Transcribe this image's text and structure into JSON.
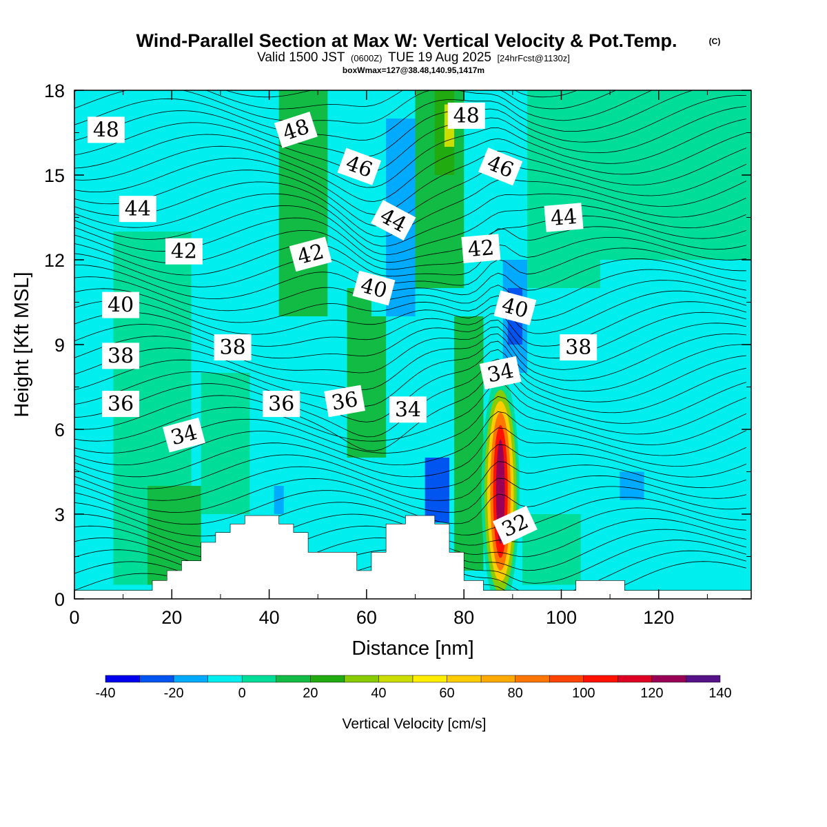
{
  "chart_data": {
    "type": "heatmap",
    "title": "Wind-Parallel Section at Max W: Vertical Velocity & Pot.Temp.",
    "copyright": "(C)",
    "subtitle": {
      "valid_prefix": "Valid 1500 JST",
      "utc": "(0600Z)",
      "date": "TUE 19 Aug 2025",
      "forecast": "[24hrFcst@1130z]"
    },
    "box_info": "boxWmax=127@38.48,140.95,1417m",
    "xlabel": "Distance [nm]",
    "ylabel": "Height [Kft MSL]",
    "xlim": [
      0,
      139
    ],
    "ylim": [
      0,
      18
    ],
    "xticks": [
      0,
      20,
      40,
      60,
      80,
      100,
      120
    ],
    "yticks": [
      0,
      3,
      6,
      9,
      12,
      15,
      18
    ],
    "colorbar": {
      "label": "Vertical Velocity [cm/s]",
      "range": [
        -40,
        140
      ],
      "step": 10,
      "tick_labels": [
        "-40",
        "-20",
        "0",
        "20",
        "40",
        "60",
        "80",
        "100",
        "120",
        "140"
      ],
      "colors": [
        "#0000ee",
        "#0055f0",
        "#00aaff",
        "#00eeee",
        "#00dd99",
        "#11bb44",
        "#22aa11",
        "#88cc00",
        "#ccdd00",
        "#ffee00",
        "#ffcc00",
        "#ffaa00",
        "#ff7700",
        "#ff4400",
        "#ff1100",
        "#dd0022",
        "#990055",
        "#551188"
      ]
    },
    "theta_labels": [
      {
        "text": "48",
        "x": 6.5,
        "y": 16.6,
        "rot": 0
      },
      {
        "text": "48",
        "x": 45.5,
        "y": 16.6,
        "rot": -18
      },
      {
        "text": "48",
        "x": 80.5,
        "y": 17.1,
        "rot": 0
      },
      {
        "text": "46",
        "x": 58.5,
        "y": 15.3,
        "rot": 20
      },
      {
        "text": "46",
        "x": 87.5,
        "y": 15.3,
        "rot": 22
      },
      {
        "text": "44",
        "x": 13.0,
        "y": 13.8,
        "rot": 0
      },
      {
        "text": "44",
        "x": 65.5,
        "y": 13.4,
        "rot": 28
      },
      {
        "text": "44",
        "x": 100.5,
        "y": 13.5,
        "rot": -5
      },
      {
        "text": "42",
        "x": 22.5,
        "y": 12.3,
        "rot": 0
      },
      {
        "text": "42",
        "x": 48.5,
        "y": 12.2,
        "rot": -15
      },
      {
        "text": "42",
        "x": 83.5,
        "y": 12.4,
        "rot": -5
      },
      {
        "text": "40",
        "x": 9.5,
        "y": 10.4,
        "rot": 0
      },
      {
        "text": "40",
        "x": 61.5,
        "y": 11.0,
        "rot": 15
      },
      {
        "text": "40",
        "x": 90.5,
        "y": 10.3,
        "rot": 15
      },
      {
        "text": "38",
        "x": 9.5,
        "y": 8.6,
        "rot": 0
      },
      {
        "text": "38",
        "x": 32.5,
        "y": 8.9,
        "rot": 0
      },
      {
        "text": "38",
        "x": 103.5,
        "y": 8.9,
        "rot": 0
      },
      {
        "text": "36",
        "x": 9.5,
        "y": 6.9,
        "rot": 0
      },
      {
        "text": "36",
        "x": 42.5,
        "y": 6.9,
        "rot": 0
      },
      {
        "text": "36",
        "x": 55.5,
        "y": 7.0,
        "rot": -10
      },
      {
        "text": "34",
        "x": 68.5,
        "y": 6.7,
        "rot": 0
      },
      {
        "text": "34",
        "x": 22.5,
        "y": 5.8,
        "rot": -15
      },
      {
        "text": "34",
        "x": 87.5,
        "y": 8.0,
        "rot": -12
      },
      {
        "text": "32",
        "x": 90.5,
        "y": 2.6,
        "rot": -25
      }
    ],
    "terrain_kft": [
      [
        0,
        0.3
      ],
      [
        16,
        0.3
      ],
      [
        16,
        0.65
      ],
      [
        19,
        0.65
      ],
      [
        19,
        1.0
      ],
      [
        22,
        1.0
      ],
      [
        22,
        1.35
      ],
      [
        26,
        1.35
      ],
      [
        26,
        2.0
      ],
      [
        29,
        2.0
      ],
      [
        29,
        2.35
      ],
      [
        32,
        2.35
      ],
      [
        32,
        2.65
      ],
      [
        35,
        2.65
      ],
      [
        35,
        2.95
      ],
      [
        42,
        2.95
      ],
      [
        42,
        2.65
      ],
      [
        45,
        2.65
      ],
      [
        45,
        2.35
      ],
      [
        48,
        2.35
      ],
      [
        48,
        1.65
      ],
      [
        58,
        1.65
      ],
      [
        58,
        1.0
      ],
      [
        61,
        1.0
      ],
      [
        61,
        1.65
      ],
      [
        64,
        1.65
      ],
      [
        64,
        2.65
      ],
      [
        68,
        2.65
      ],
      [
        68,
        2.95
      ],
      [
        74,
        2.95
      ],
      [
        74,
        2.65
      ],
      [
        77,
        2.65
      ],
      [
        77,
        1.65
      ],
      [
        80,
        1.65
      ],
      [
        80,
        0.65
      ],
      [
        84,
        0.65
      ],
      [
        84,
        0.3
      ],
      [
        103,
        0.3
      ],
      [
        103,
        0.65
      ],
      [
        113,
        0.65
      ],
      [
        113,
        0.3
      ],
      [
        139,
        0.3
      ]
    ]
  }
}
